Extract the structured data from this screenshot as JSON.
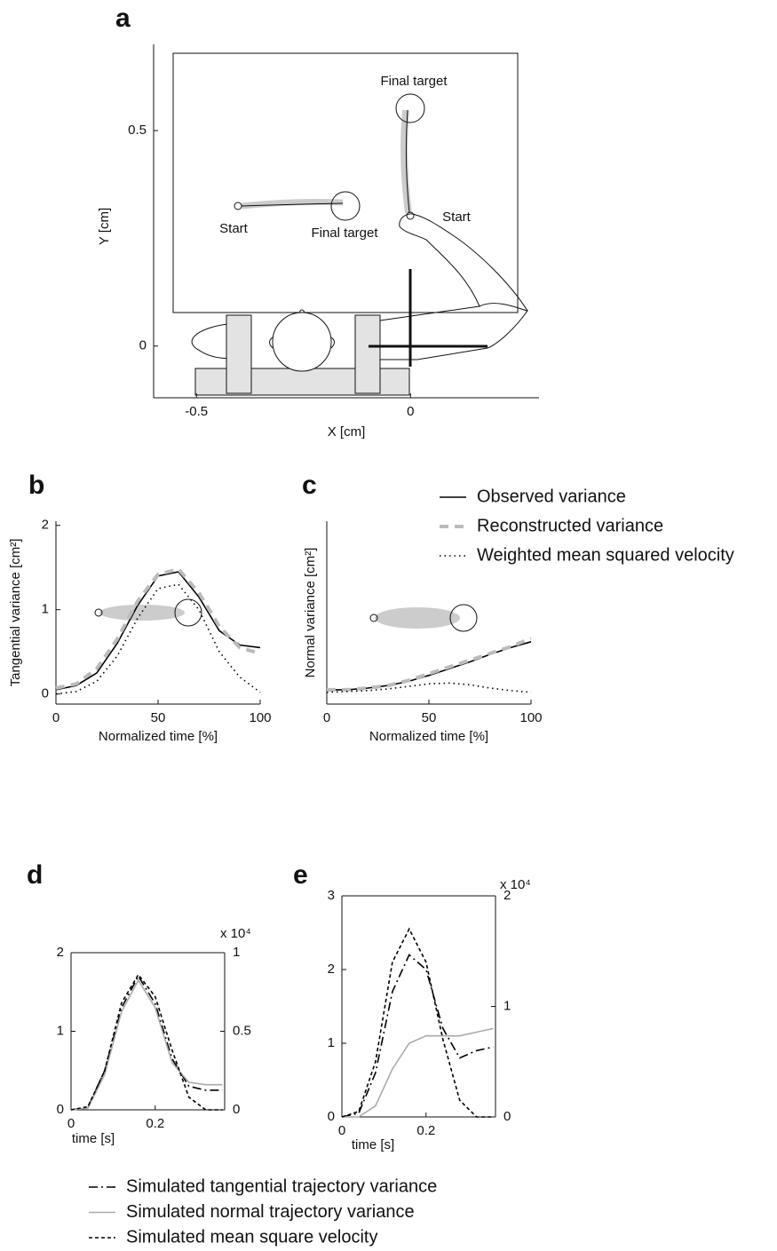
{
  "chart_data": [
    {
      "type": "diagram",
      "panel": "a",
      "xlabel": "X [cm]",
      "ylabel": "Y [cm]",
      "xlim": [
        -0.6,
        0.3
      ],
      "ylim": [
        -0.12,
        0.7
      ],
      "xticks": [
        -0.5,
        0
      ],
      "yticks": [
        0,
        0.5
      ],
      "annotations": [
        "Final target",
        "Start",
        "Final target",
        "Start"
      ]
    },
    {
      "type": "line",
      "panel": "b",
      "xlabel": "Normalized time [%]",
      "ylabel": "Tangential variance [cm²]",
      "x": [
        0,
        10,
        20,
        30,
        40,
        50,
        60,
        70,
        80,
        90,
        100
      ],
      "xlim": [
        0,
        100
      ],
      "ylim": [
        -0.12,
        2.05
      ],
      "xticks": [
        0,
        50,
        100
      ],
      "yticks": [
        0,
        1,
        2
      ],
      "series": [
        {
          "name": "Observed variance",
          "color": "#000000",
          "style": "solid",
          "values": [
            0.05,
            0.1,
            0.25,
            0.6,
            1.05,
            1.4,
            1.45,
            1.15,
            0.75,
            0.58,
            0.55
          ]
        },
        {
          "name": "Reconstructed variance",
          "color": "#bbbbbb",
          "style": "dashed",
          "values": [
            0.07,
            0.12,
            0.3,
            0.65,
            1.1,
            1.42,
            1.48,
            1.2,
            0.8,
            0.55,
            0.48
          ]
        },
        {
          "name": "Weighted mean squared velocity",
          "color": "#000000",
          "style": "dotted",
          "values": [
            0,
            0.03,
            0.15,
            0.45,
            0.9,
            1.25,
            1.3,
            1.0,
            0.5,
            0.2,
            0.02
          ]
        }
      ]
    },
    {
      "type": "line",
      "panel": "c",
      "xlabel": "Normalized time [%]",
      "ylabel": "Normal variance [cm²]",
      "x": [
        0,
        10,
        20,
        30,
        40,
        50,
        60,
        70,
        80,
        90,
        100
      ],
      "xlim": [
        0,
        100
      ],
      "ylim": [
        -0.12,
        2.05
      ],
      "xticks": [
        0,
        50,
        100
      ],
      "series": [
        {
          "color": "#000000",
          "style": "solid",
          "values": [
            0.05,
            0.05,
            0.07,
            0.1,
            0.15,
            0.22,
            0.3,
            0.38,
            0.47,
            0.55,
            0.62
          ]
        },
        {
          "color": "#bbbbbb",
          "style": "dashed",
          "values": [
            0.05,
            0.05,
            0.07,
            0.1,
            0.16,
            0.24,
            0.32,
            0.4,
            0.48,
            0.56,
            0.66
          ]
        },
        {
          "color": "#000000",
          "style": "dotted",
          "values": [
            0.02,
            0.03,
            0.04,
            0.06,
            0.09,
            0.12,
            0.13,
            0.11,
            0.07,
            0.04,
            0.02
          ]
        }
      ]
    },
    {
      "type": "line",
      "panel": "d",
      "xlabel": "time [s]",
      "y2_multiplier": "x 10⁴",
      "x": [
        0,
        0.04,
        0.08,
        0.12,
        0.16,
        0.2,
        0.24,
        0.28,
        0.32,
        0.36
      ],
      "xlim": [
        0,
        0.365
      ],
      "ylim": [
        0,
        2
      ],
      "y2lim": [
        0,
        1
      ],
      "xticks": [
        0,
        0.2
      ],
      "yticks": [
        0,
        1,
        2
      ],
      "y2ticks": [
        0,
        0.5,
        1
      ],
      "series": [
        {
          "name": "Simulated tangential trajectory variance",
          "color": "#000000",
          "style": "dashdot",
          "values": [
            0,
            0.03,
            0.5,
            1.3,
            1.7,
            1.35,
            0.65,
            0.3,
            0.25,
            0.25
          ]
        },
        {
          "name": "Simulated normal trajectory variance",
          "color": "#aaaaaa",
          "style": "solid",
          "values": [
            0,
            0.02,
            0.45,
            1.25,
            1.65,
            1.3,
            0.6,
            0.35,
            0.32,
            0.32
          ]
        },
        {
          "name": "Simulated mean square velocity",
          "color": "#000000",
          "style": "shortdash",
          "axis": "y2",
          "values": [
            0,
            0.02,
            0.25,
            0.68,
            0.86,
            0.72,
            0.38,
            0.08,
            0,
            0
          ]
        }
      ]
    },
    {
      "type": "line",
      "panel": "e",
      "xlabel": "time [s]",
      "y2_multiplier": "x 10⁴",
      "x": [
        0,
        0.04,
        0.08,
        0.12,
        0.16,
        0.2,
        0.24,
        0.28,
        0.32,
        0.36
      ],
      "xlim": [
        0,
        0.365
      ],
      "ylim": [
        0,
        3
      ],
      "y2lim": [
        0,
        2
      ],
      "xticks": [
        0,
        0.2
      ],
      "yticks": [
        0,
        1,
        2,
        3
      ],
      "y2ticks": [
        0,
        1,
        2
      ],
      "series": [
        {
          "color": "#000000",
          "style": "dashdot",
          "values": [
            0,
            0.05,
            0.6,
            1.7,
            2.2,
            2.0,
            1.2,
            0.8,
            0.9,
            0.95
          ]
        },
        {
          "color": "#aaaaaa",
          "style": "solid",
          "values": [
            0,
            0,
            0.15,
            0.65,
            1.0,
            1.1,
            1.1,
            1.1,
            1.15,
            1.2
          ]
        },
        {
          "color": "#000000",
          "style": "shortdash",
          "axis": "y2",
          "values": [
            0,
            0.05,
            0.5,
            1.4,
            1.7,
            1.4,
            0.7,
            0.15,
            0,
            0
          ]
        }
      ]
    }
  ]
}
